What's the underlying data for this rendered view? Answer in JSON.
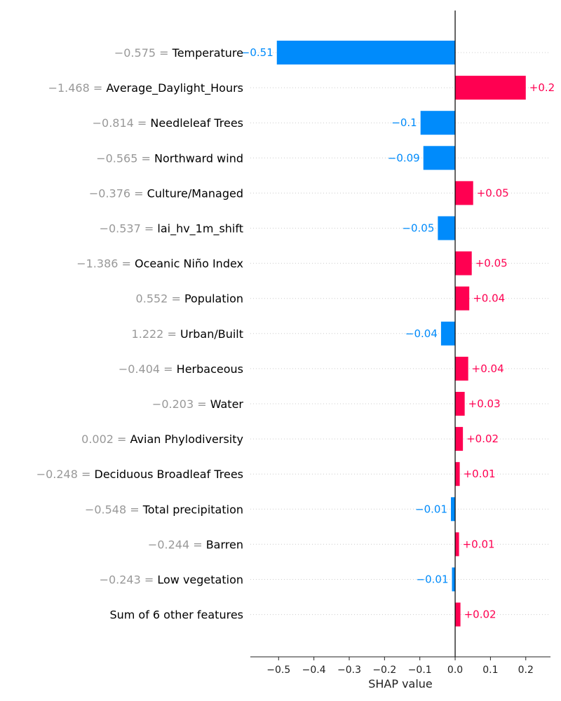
{
  "chart_data": {
    "type": "bar",
    "orientation": "horizontal",
    "xlabel": "SHAP value",
    "xlim": [
      -0.58,
      0.27
    ],
    "xticks": [
      -0.5,
      -0.4,
      -0.3,
      -0.2,
      -0.1,
      0.0,
      0.1,
      0.2
    ],
    "xtick_labels": [
      "−0.5",
      "−0.4",
      "−0.3",
      "−0.2",
      "−0.1",
      "0.0",
      "0.1",
      "0.2"
    ],
    "grid": "dotted horizontal row guides",
    "colors": {
      "positive": "#ff0051",
      "negative": "#008bfb",
      "feature_value": "#999999",
      "feature_name": "#000000"
    },
    "rows": [
      {
        "value_text": "−0.575 =",
        "feature": "Temperature",
        "shap": -0.505,
        "label": "−0.51"
      },
      {
        "value_text": "−1.468 =",
        "feature": "Average_Daylight_Hours",
        "shap": 0.2,
        "label": "+0.2"
      },
      {
        "value_text": "−0.814 =",
        "feature": "Needleleaf Trees",
        "shap": -0.098,
        "label": "−0.1"
      },
      {
        "value_text": "−0.565 =",
        "feature": "Northward wind",
        "shap": -0.09,
        "label": "−0.09"
      },
      {
        "value_text": "−0.376 =",
        "feature": "Culture/Managed",
        "shap": 0.051,
        "label": "+0.05"
      },
      {
        "value_text": "−0.537 =",
        "feature": "lai_hv_1m_shift",
        "shap": -0.049,
        "label": "−0.05"
      },
      {
        "value_text": "−1.386 =",
        "feature": "Oceanic Niño Index",
        "shap": 0.047,
        "label": "+0.05"
      },
      {
        "value_text": "0.552 =",
        "feature": "Population",
        "shap": 0.04,
        "label": "+0.04"
      },
      {
        "value_text": "1.222 =",
        "feature": "Urban/Built",
        "shap": -0.04,
        "label": "−0.04"
      },
      {
        "value_text": "−0.404 =",
        "feature": "Herbaceous",
        "shap": 0.037,
        "label": "+0.04"
      },
      {
        "value_text": "−0.203 =",
        "feature": "Water",
        "shap": 0.027,
        "label": "+0.03"
      },
      {
        "value_text": "0.002 =",
        "feature": "Avian Phylodiversity",
        "shap": 0.022,
        "label": "+0.02"
      },
      {
        "value_text": "−0.248 =",
        "feature": "Deciduous Broadleaf Trees",
        "shap": 0.013,
        "label": "+0.01"
      },
      {
        "value_text": "−0.548 =",
        "feature": "Total precipitation",
        "shap": -0.012,
        "label": "−0.01"
      },
      {
        "value_text": "−0.244 =",
        "feature": "Barren",
        "shap": 0.011,
        "label": "+0.01"
      },
      {
        "value_text": "−0.243 =",
        "feature": "Low vegetation",
        "shap": -0.009,
        "label": "−0.01"
      },
      {
        "value_text": "",
        "feature": "Sum of 6 other features",
        "shap": 0.015,
        "label": "+0.02"
      }
    ]
  }
}
